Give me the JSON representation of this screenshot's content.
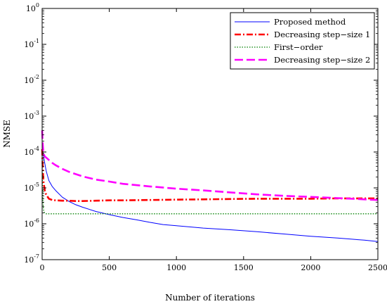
{
  "chart_data": {
    "type": "line",
    "title": "",
    "xlabel": "Number of iterations",
    "ylabel": "NMSE",
    "xlim": [
      0,
      2500
    ],
    "ylim": [
      1e-07,
      1
    ],
    "yscale": "log",
    "grid": false,
    "legend_position": "top-right",
    "x_ticks": [
      {
        "value": 0,
        "label": "0"
      },
      {
        "value": 500,
        "label": "500"
      },
      {
        "value": 1000,
        "label": "1000"
      },
      {
        "value": 1500,
        "label": "1500"
      },
      {
        "value": 2000,
        "label": "2000"
      },
      {
        "value": 2500,
        "label": "2500"
      }
    ],
    "y_ticks": [
      {
        "value": 1e-07,
        "base": "10",
        "exp": "-7"
      },
      {
        "value": 1e-06,
        "base": "10",
        "exp": "-6"
      },
      {
        "value": 1e-05,
        "base": "10",
        "exp": "-5"
      },
      {
        "value": 0.0001,
        "base": "10",
        "exp": "-4"
      },
      {
        "value": 0.001,
        "base": "10",
        "exp": "-3"
      },
      {
        "value": 0.01,
        "base": "10",
        "exp": "-2"
      },
      {
        "value": 0.1,
        "base": "10",
        "exp": "-1"
      },
      {
        "value": 1,
        "base": "10",
        "exp": "0"
      }
    ],
    "series": [
      {
        "name": "Proposed method",
        "color": "#0000ff",
        "style": "solid",
        "x": [
          0,
          5,
          15,
          30,
          50,
          75,
          100,
          150,
          200,
          250,
          300,
          400,
          500,
          600,
          700,
          800,
          900,
          1000,
          1200,
          1400,
          1600,
          1800,
          2000,
          2200,
          2400,
          2500
        ],
        "y": [
          0.00015,
          0.00011,
          6e-05,
          3e-05,
          1.6e-05,
          1.1e-05,
          8.5e-06,
          5.5e-06,
          4.2e-06,
          3.4e-06,
          2.9e-06,
          2.2e-06,
          1.8e-06,
          1.5e-06,
          1.3e-06,
          1.1e-06,
          9.5e-07,
          8.8e-07,
          7.6e-07,
          6.8e-07,
          6e-07,
          5.2e-07,
          4.5e-07,
          4e-07,
          3.5e-07,
          3.2e-07
        ]
      },
      {
        "name": "Decreasing step−size 1",
        "color": "#ff0000",
        "style": "dashdot",
        "x": [
          0,
          5,
          10,
          20,
          30,
          50,
          75,
          100,
          150,
          200,
          250,
          300,
          400,
          500,
          600,
          800,
          1000,
          1200,
          1400,
          1600,
          1800,
          2000,
          2200,
          2400,
          2500
        ],
        "y": [
          0.00012,
          3e-05,
          1.5e-05,
          8.5e-06,
          6.5e-06,
          5e-06,
          4.6e-06,
          4.5e-06,
          4.4e-06,
          4.4e-06,
          4.3e-06,
          4.3e-06,
          4.4e-06,
          4.5e-06,
          4.5e-06,
          4.6e-06,
          4.7e-06,
          4.8e-06,
          4.9e-06,
          5e-06,
          5e-06,
          5e-06,
          5.1e-06,
          5.1e-06,
          5.1e-06
        ]
      },
      {
        "name": "First−order",
        "color": "#008000",
        "style": "dotted",
        "x": [
          0,
          3,
          6,
          10,
          15,
          20,
          30,
          50,
          100,
          200,
          300,
          500,
          700,
          900,
          1100,
          1300,
          1500,
          1700,
          1900,
          2100,
          2300,
          2500
        ],
        "y": [
          5e-05,
          1e-05,
          4.5e-06,
          2.5e-06,
          2.1e-06,
          2e-06,
          1.9e-06,
          1.9e-06,
          1.9e-06,
          1.9e-06,
          1.9e-06,
          1.9e-06,
          1.9e-06,
          1.9e-06,
          1.9e-06,
          1.9e-06,
          1.9e-06,
          1.9e-06,
          1.9e-06,
          1.9e-06,
          1.9e-06,
          1.9e-06
        ]
      },
      {
        "name": "Decreasing step−size 2",
        "color": "#ff00ff",
        "style": "dashed",
        "x": [
          0,
          5,
          10,
          20,
          30,
          50,
          75,
          100,
          150,
          200,
          300,
          400,
          500,
          600,
          800,
          1000,
          1200,
          1400,
          1600,
          1800,
          2000,
          2200,
          2400,
          2500
        ],
        "y": [
          0.0004,
          0.00015,
          9e-05,
          7.5e-05,
          7e-05,
          6e-05,
          5e-05,
          4.3e-05,
          3.4e-05,
          2.8e-05,
          2.1e-05,
          1.7e-05,
          1.5e-05,
          1.3e-05,
          1.1e-05,
          9.5e-06,
          8.5e-06,
          7.5e-06,
          6.6e-06,
          6e-06,
          5.6e-06,
          5.2e-06,
          4.8e-06,
          4.6e-06
        ]
      }
    ]
  }
}
